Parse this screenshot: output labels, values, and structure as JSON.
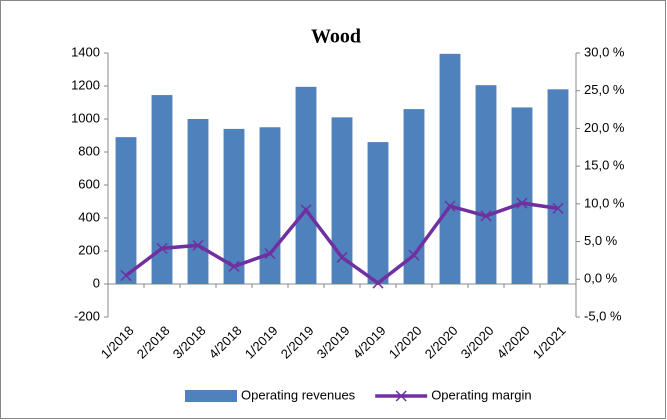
{
  "chart_data": {
    "type": "bar_line",
    "title": "Wood",
    "categories": [
      "1/2018",
      "2/2018",
      "3/2018",
      "4/2018",
      "1/2019",
      "2/2019",
      "3/2019",
      "4/2019",
      "1/2020",
      "2/2020",
      "3/2020",
      "4/2020",
      "1/2021"
    ],
    "series": [
      {
        "name": "Operating revenues",
        "type": "bar",
        "color": "#4f81bd",
        "values": [
          890,
          1145,
          1000,
          940,
          950,
          1195,
          1010,
          860,
          1060,
          1395,
          1205,
          1070,
          1180
        ]
      },
      {
        "name": "Operating margin",
        "type": "line",
        "axis": "y2",
        "color": "#7030a0",
        "values": [
          0.5,
          4.1,
          4.5,
          1.7,
          3.4,
          9.2,
          2.9,
          -0.5,
          3.2,
          9.7,
          8.4,
          10.1,
          9.4
        ]
      }
    ],
    "ylim": [
      -200,
      1400
    ],
    "yticks": [
      -200,
      0,
      200,
      400,
      600,
      800,
      1000,
      1200,
      1400
    ],
    "y2lim": [
      -5,
      30
    ],
    "y2ticks": [
      {
        "value": -5,
        "label": "-5,0 %"
      },
      {
        "value": 0,
        "label": "0,0 %"
      },
      {
        "value": 5,
        "label": "5,0 %"
      },
      {
        "value": 10,
        "label": "10,0 %"
      },
      {
        "value": 15,
        "label": "15,0 %"
      },
      {
        "value": 20,
        "label": "20,0 %"
      },
      {
        "value": 25,
        "label": "25,0 %"
      },
      {
        "value": 30,
        "label": "30,0 %"
      }
    ],
    "legend": "bottom"
  }
}
